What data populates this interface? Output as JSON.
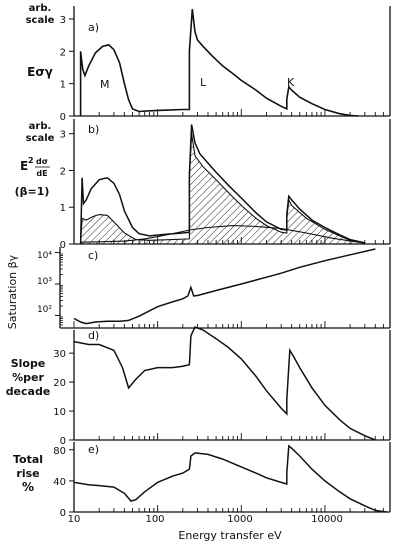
{
  "chart_data": [
    {
      "type": "line",
      "panel_label": "a)",
      "ylabel_lines": [
        "arb.",
        "scale"
      ],
      "ytitle": "Eσγ",
      "x_scale": "log",
      "xlim": [
        10,
        60000
      ],
      "ylim": [
        0,
        3.4
      ],
      "yticks": [
        0,
        1,
        2,
        3
      ],
      "annotations": [
        {
          "text": "M",
          "x": 13.5,
          "y": 1.05
        },
        {
          "text": "L",
          "x": 280,
          "y": 1.0
        },
        {
          "text": "K",
          "x": 2900,
          "y": 1.0
        }
      ],
      "series": [
        {
          "values": [
            [
              12,
              0
            ],
            [
              12,
              2.0
            ],
            [
              12.7,
              1.45
            ],
            [
              13.5,
              1.25
            ],
            [
              15,
              1.55
            ],
            [
              18,
              1.95
            ],
            [
              22,
              2.15
            ],
            [
              26,
              2.2
            ],
            [
              30,
              2.05
            ],
            [
              35,
              1.65
            ],
            [
              40,
              1.0
            ],
            [
              45,
              0.5
            ],
            [
              50,
              0.22
            ],
            [
              60,
              0.14
            ],
            [
              80,
              0.16
            ],
            [
              120,
              0.18
            ],
            [
              200,
              0.2
            ],
            [
              240,
              0.2
            ],
            [
              240,
              2.0
            ],
            [
              260,
              3.3
            ],
            [
              280,
              2.6
            ],
            [
              300,
              2.35
            ],
            [
              350,
              2.15
            ],
            [
              450,
              1.85
            ],
            [
              600,
              1.55
            ],
            [
              800,
              1.3
            ],
            [
              1000,
              1.1
            ],
            [
              1500,
              0.8
            ],
            [
              2000,
              0.55
            ],
            [
              3000,
              0.3
            ],
            [
              3500,
              0.22
            ],
            [
              3500,
              0.52
            ],
            [
              3700,
              0.9
            ],
            [
              4000,
              0.8
            ],
            [
              5000,
              0.58
            ],
            [
              7000,
              0.38
            ],
            [
              10000,
              0.2
            ],
            [
              15000,
              0.07
            ],
            [
              20000,
              0.02
            ],
            [
              25000,
              0
            ]
          ]
        }
      ]
    },
    {
      "type": "area",
      "panel_label": "b)",
      "ylabel_lines": [
        "arb.",
        "scale"
      ],
      "ytitle_main": "E",
      "ytitle_sup": "2",
      "ytitle_frac_top": "dσ",
      "ytitle_frac_bottom": "dE",
      "ytitle_beta": "(β=1)",
      "x_scale": "log",
      "xlim": [
        10,
        60000
      ],
      "ylim": [
        0,
        3.4
      ],
      "yticks": [
        0,
        1,
        2,
        3
      ],
      "series": [
        {
          "values": [
            [
              12,
              0
            ],
            [
              12.5,
              1.8
            ],
            [
              13,
              1.1
            ],
            [
              14,
              1.2
            ],
            [
              16,
              1.5
            ],
            [
              20,
              1.75
            ],
            [
              25,
              1.8
            ],
            [
              30,
              1.65
            ],
            [
              35,
              1.35
            ],
            [
              40,
              0.9
            ],
            [
              50,
              0.45
            ],
            [
              60,
              0.28
            ],
            [
              80,
              0.22
            ],
            [
              120,
              0.26
            ],
            [
              200,
              0.3
            ],
            [
              240,
              0.32
            ],
            [
              240,
              1.9
            ],
            [
              255,
              3.25
            ],
            [
              280,
              2.75
            ],
            [
              320,
              2.45
            ],
            [
              400,
              2.2
            ],
            [
              500,
              1.95
            ],
            [
              700,
              1.6
            ],
            [
              1000,
              1.25
            ],
            [
              1500,
              0.85
            ],
            [
              2000,
              0.6
            ],
            [
              3000,
              0.4
            ],
            [
              3500,
              0.38
            ],
            [
              3500,
              0.8
            ],
            [
              3700,
              1.3
            ],
            [
              4000,
              1.2
            ],
            [
              5000,
              0.95
            ],
            [
              7000,
              0.65
            ],
            [
              10000,
              0.45
            ],
            [
              15000,
              0.25
            ],
            [
              20000,
              0.12
            ],
            [
              30000,
              0.03
            ]
          ]
        },
        {
          "values": [
            [
              12,
              0
            ],
            [
              12.5,
              0.7
            ],
            [
              14,
              0.65
            ],
            [
              17,
              0.75
            ],
            [
              20,
              0.8
            ],
            [
              25,
              0.78
            ],
            [
              30,
              0.6
            ],
            [
              40,
              0.3
            ],
            [
              55,
              0.12
            ],
            [
              80,
              0.1
            ],
            [
              150,
              0.12
            ],
            [
              240,
              0.14
            ],
            [
              240,
              1.8
            ],
            [
              255,
              3.0
            ],
            [
              280,
              2.4
            ],
            [
              350,
              2.1
            ],
            [
              500,
              1.75
            ],
            [
              700,
              1.4
            ],
            [
              1000,
              1.05
            ],
            [
              1500,
              0.7
            ],
            [
              2000,
              0.5
            ],
            [
              3000,
              0.32
            ],
            [
              3500,
              0.3
            ],
            [
              3500,
              0.7
            ],
            [
              3700,
              1.2
            ],
            [
              4000,
              1.05
            ],
            [
              6000,
              0.7
            ],
            [
              10000,
              0.4
            ],
            [
              15000,
              0.22
            ],
            [
              20000,
              0.1
            ],
            [
              30000,
              0.02
            ]
          ]
        },
        {
          "values": [
            [
              12,
              0.05
            ],
            [
              20,
              0.06
            ],
            [
              40,
              0.08
            ],
            [
              70,
              0.14
            ],
            [
              100,
              0.2
            ],
            [
              150,
              0.28
            ],
            [
              200,
              0.34
            ],
            [
              240,
              0.38
            ],
            [
              400,
              0.45
            ],
            [
              800,
              0.5
            ],
            [
              1500,
              0.48
            ],
            [
              3000,
              0.42
            ],
            [
              6000,
              0.3
            ],
            [
              12000,
              0.16
            ],
            [
              25000,
              0.05
            ]
          ]
        }
      ]
    },
    {
      "type": "line",
      "panel_label": "c)",
      "ylabel": "Saturation βγ",
      "x_scale": "log",
      "y_scale": "log",
      "xlim": [
        10,
        60000
      ],
      "ylim": [
        40,
        15000
      ],
      "yticks": [
        100,
        1000,
        10000
      ],
      "yticklabels": [
        "10²",
        "10³",
        "10⁴"
      ],
      "series": [
        {
          "values": [
            [
              10,
              80
            ],
            [
              12,
              62
            ],
            [
              14,
              55
            ],
            [
              18,
              62
            ],
            [
              25,
              66
            ],
            [
              35,
              66
            ],
            [
              45,
              70
            ],
            [
              60,
              95
            ],
            [
              100,
              190
            ],
            [
              150,
              270
            ],
            [
              200,
              340
            ],
            [
              230,
              420
            ],
            [
              250,
              780
            ],
            [
              270,
              420
            ],
            [
              300,
              430
            ],
            [
              500,
              620
            ],
            [
              1000,
              1000
            ],
            [
              2000,
              1650
            ],
            [
              3000,
              2200
            ],
            [
              5000,
              3400
            ],
            [
              10000,
              5500
            ],
            [
              20000,
              8500
            ],
            [
              40000,
              13000
            ]
          ]
        }
      ]
    },
    {
      "type": "line",
      "panel_label": "d)",
      "ylabel_lines": [
        "Slope",
        "%per",
        "decade"
      ],
      "x_scale": "log",
      "xlim": [
        10,
        60000
      ],
      "ylim": [
        0,
        38
      ],
      "yticks": [
        0,
        10,
        20,
        30
      ],
      "series": [
        {
          "values": [
            [
              10,
              34
            ],
            [
              15,
              33
            ],
            [
              20,
              33
            ],
            [
              30,
              31
            ],
            [
              38,
              25
            ],
            [
              45,
              18
            ],
            [
              55,
              21
            ],
            [
              70,
              24
            ],
            [
              100,
              25
            ],
            [
              150,
              25
            ],
            [
              200,
              25.5
            ],
            [
              240,
              26
            ],
            [
              250,
              36
            ],
            [
              280,
              39
            ],
            [
              350,
              38
            ],
            [
              500,
              35
            ],
            [
              700,
              32
            ],
            [
              1000,
              28
            ],
            [
              1500,
              22
            ],
            [
              2000,
              17
            ],
            [
              3000,
              11
            ],
            [
              3500,
              9
            ],
            [
              3500,
              14
            ],
            [
              3800,
              31
            ],
            [
              4200,
              29
            ],
            [
              5000,
              25
            ],
            [
              7000,
              18
            ],
            [
              10000,
              12
            ],
            [
              15000,
              7
            ],
            [
              20000,
              4
            ],
            [
              30000,
              1.5
            ],
            [
              40000,
              0
            ]
          ]
        }
      ]
    },
    {
      "type": "line",
      "panel_label": "e)",
      "ylabel_lines": [
        "Total",
        "rise",
        "%"
      ],
      "xlabel": "Energy transfer eV",
      "x_scale": "log",
      "xlim": [
        10,
        60000
      ],
      "ylim": [
        0,
        90
      ],
      "yticks": [
        0,
        40,
        80
      ],
      "xticks": [
        10,
        100,
        1000,
        10000
      ],
      "xticklabels": [
        "10",
        "100",
        "1000",
        "10000"
      ],
      "series": [
        {
          "values": [
            [
              10,
              38
            ],
            [
              15,
              35
            ],
            [
              20,
              34
            ],
            [
              30,
              32
            ],
            [
              40,
              24
            ],
            [
              48,
              14
            ],
            [
              55,
              16
            ],
            [
              70,
              26
            ],
            [
              100,
              38
            ],
            [
              150,
              46
            ],
            [
              200,
              50
            ],
            [
              240,
              55
            ],
            [
              250,
              72
            ],
            [
              280,
              76
            ],
            [
              400,
              74
            ],
            [
              600,
              68
            ],
            [
              1000,
              58
            ],
            [
              1500,
              50
            ],
            [
              2000,
              44
            ],
            [
              3000,
              38
            ],
            [
              3500,
              36
            ],
            [
              3500,
              50
            ],
            [
              3700,
              85
            ],
            [
              4000,
              82
            ],
            [
              5000,
              72
            ],
            [
              7000,
              55
            ],
            [
              10000,
              40
            ],
            [
              15000,
              26
            ],
            [
              20000,
              17
            ],
            [
              30000,
              8
            ],
            [
              40000,
              2
            ],
            [
              55000,
              0
            ]
          ]
        }
      ]
    }
  ]
}
